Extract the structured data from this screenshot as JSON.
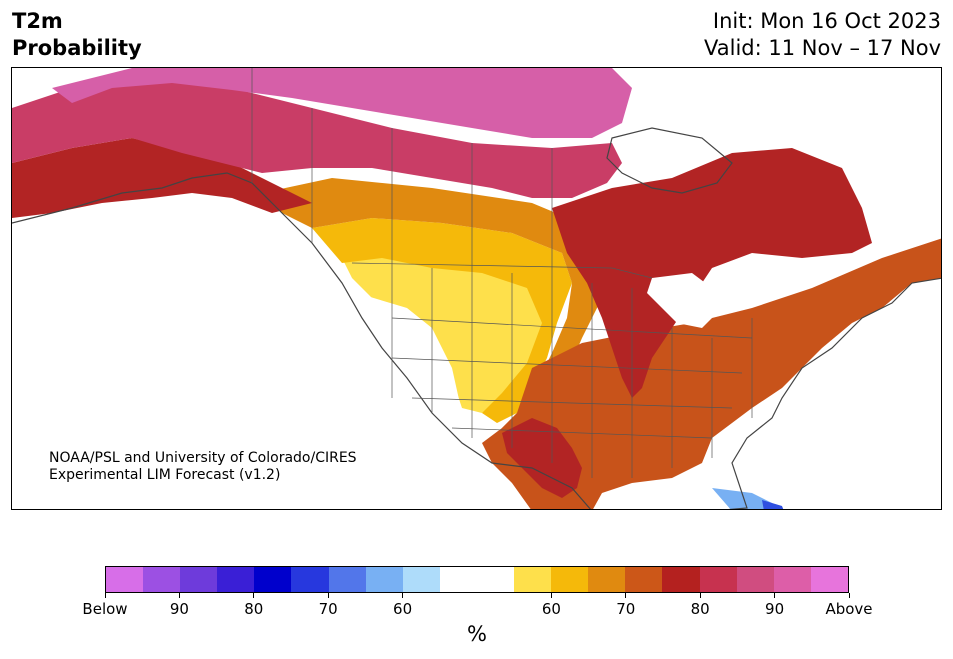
{
  "header": {
    "variable": "T2m",
    "quantity": "Probability",
    "init": "Init: Mon 16 Oct 2023",
    "valid": "Valid: 11 Nov – 17 Nov"
  },
  "credit": {
    "line1": "NOAA/PSL and University of Colorado/CIRES",
    "line2": "Experimental LIM Forecast (v1.2)"
  },
  "colorbar": {
    "unit": "%",
    "colors": [
      "#d76ee8",
      "#9c50e3",
      "#6e3bdb",
      "#3a1fd6",
      "#0000cc",
      "#2738de",
      "#5276ea",
      "#78b0f3",
      "#aedcfa",
      "#ffffff",
      "#ffffff",
      "#fee04b",
      "#f5b90a",
      "#e08a10",
      "#cc5718",
      "#b4211f",
      "#c7324f",
      "#d04d80",
      "#dd5ea8",
      "#e774dc"
    ],
    "ticks": [
      {
        "label": "Below",
        "index": 0
      },
      {
        "label": "90",
        "index": 2
      },
      {
        "label": "80",
        "index": 4
      },
      {
        "label": "70",
        "index": 6
      },
      {
        "label": "60",
        "index": 8
      },
      {
        "label": "60",
        "index": 12
      },
      {
        "label": "70",
        "index": 14
      },
      {
        "label": "80",
        "index": 16
      },
      {
        "label": "90",
        "index": 18
      },
      {
        "label": "Above",
        "index": 20
      }
    ]
  },
  "map": {
    "colors": {
      "above90": "#d65fa8",
      "above80": "#c93d66",
      "above70": "#b22424",
      "above65": "#c8531a",
      "above60": "#e08a10",
      "above55": "#f5b90a",
      "above50": "#fee04b",
      "neutral": "#ffffff",
      "below55": "#aedcfa",
      "below60": "#78b0f3",
      "below70": "#2f4fe0"
    }
  }
}
